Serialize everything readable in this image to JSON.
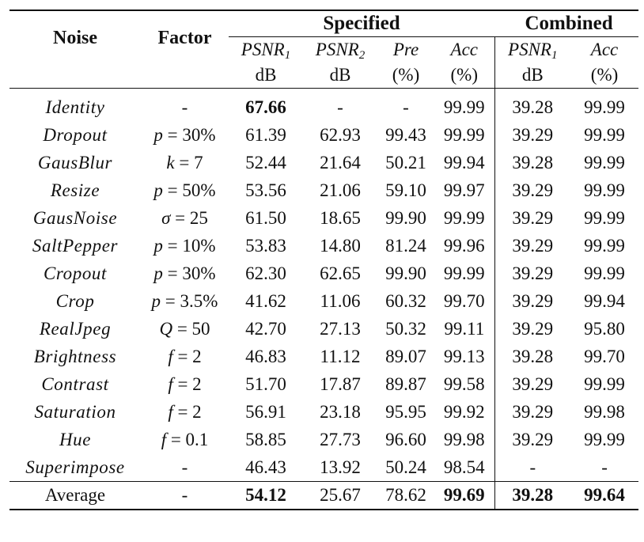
{
  "header": {
    "noise": "Noise",
    "factor": "Factor",
    "group_specified": "Specified",
    "group_combined": "Combined",
    "columns": [
      {
        "base": "PSNR",
        "sub": "1",
        "unit": "dB"
      },
      {
        "base": "PSNR",
        "sub": "2",
        "unit": "dB"
      },
      {
        "base": "Pre",
        "sub": "",
        "unit": "(%)"
      },
      {
        "base": "Acc",
        "sub": "",
        "unit": "(%)"
      },
      {
        "base": "PSNR",
        "sub": "1",
        "unit": "dB"
      },
      {
        "base": "Acc",
        "sub": "",
        "unit": "(%)"
      }
    ]
  },
  "rows": [
    {
      "noise": "Identity",
      "factor": "-",
      "values": [
        "67.66",
        "-",
        "-",
        "99.99",
        "39.28",
        "99.99"
      ],
      "bold": [
        0
      ]
    },
    {
      "noise": "Dropout",
      "factor": "p = 30%",
      "values": [
        "61.39",
        "62.93",
        "99.43",
        "99.99",
        "39.29",
        "99.99"
      ],
      "bold": []
    },
    {
      "noise": "GausBlur",
      "factor": "k = 7",
      "values": [
        "52.44",
        "21.64",
        "50.21",
        "99.94",
        "39.28",
        "99.99"
      ],
      "bold": []
    },
    {
      "noise": "Resize",
      "factor": "p = 50%",
      "values": [
        "53.56",
        "21.06",
        "59.10",
        "99.97",
        "39.29",
        "99.99"
      ],
      "bold": []
    },
    {
      "noise": "GausNoise",
      "factor": "σ = 25",
      "values": [
        "61.50",
        "18.65",
        "99.90",
        "99.99",
        "39.29",
        "99.99"
      ],
      "bold": []
    },
    {
      "noise": "SaltPepper",
      "factor": "p = 10%",
      "values": [
        "53.83",
        "14.80",
        "81.24",
        "99.96",
        "39.29",
        "99.99"
      ],
      "bold": []
    },
    {
      "noise": "Cropout",
      "factor": "p = 30%",
      "values": [
        "62.30",
        "62.65",
        "99.90",
        "99.99",
        "39.29",
        "99.99"
      ],
      "bold": []
    },
    {
      "noise": "Crop",
      "factor": "p = 3.5%",
      "values": [
        "41.62",
        "11.06",
        "60.32",
        "99.70",
        "39.29",
        "99.94"
      ],
      "bold": []
    },
    {
      "noise": "RealJpeg",
      "factor": "Q = 50",
      "values": [
        "42.70",
        "27.13",
        "50.32",
        "99.11",
        "39.29",
        "95.80"
      ],
      "bold": []
    },
    {
      "noise": "Brightness",
      "factor": "f = 2",
      "values": [
        "46.83",
        "11.12",
        "89.07",
        "99.13",
        "39.28",
        "99.70"
      ],
      "bold": []
    },
    {
      "noise": "Contrast",
      "factor": "f = 2",
      "values": [
        "51.70",
        "17.87",
        "89.87",
        "99.58",
        "39.29",
        "99.99"
      ],
      "bold": []
    },
    {
      "noise": "Saturation",
      "factor": "f = 2",
      "values": [
        "56.91",
        "23.18",
        "95.95",
        "99.92",
        "39.29",
        "99.98"
      ],
      "bold": []
    },
    {
      "noise": "Hue",
      "factor": "f = 0.1",
      "values": [
        "58.85",
        "27.73",
        "96.60",
        "99.98",
        "39.29",
        "99.99"
      ],
      "bold": []
    },
    {
      "noise": "Superimpose",
      "factor": "-",
      "values": [
        "46.43",
        "13.92",
        "50.24",
        "98.54",
        "-",
        "-"
      ],
      "bold": []
    }
  ],
  "average": {
    "noise": "Average",
    "factor": "-",
    "values": [
      "54.12",
      "25.67",
      "78.62",
      "99.69",
      "39.28",
      "99.64"
    ],
    "bold": [
      0,
      3,
      4,
      5
    ]
  }
}
